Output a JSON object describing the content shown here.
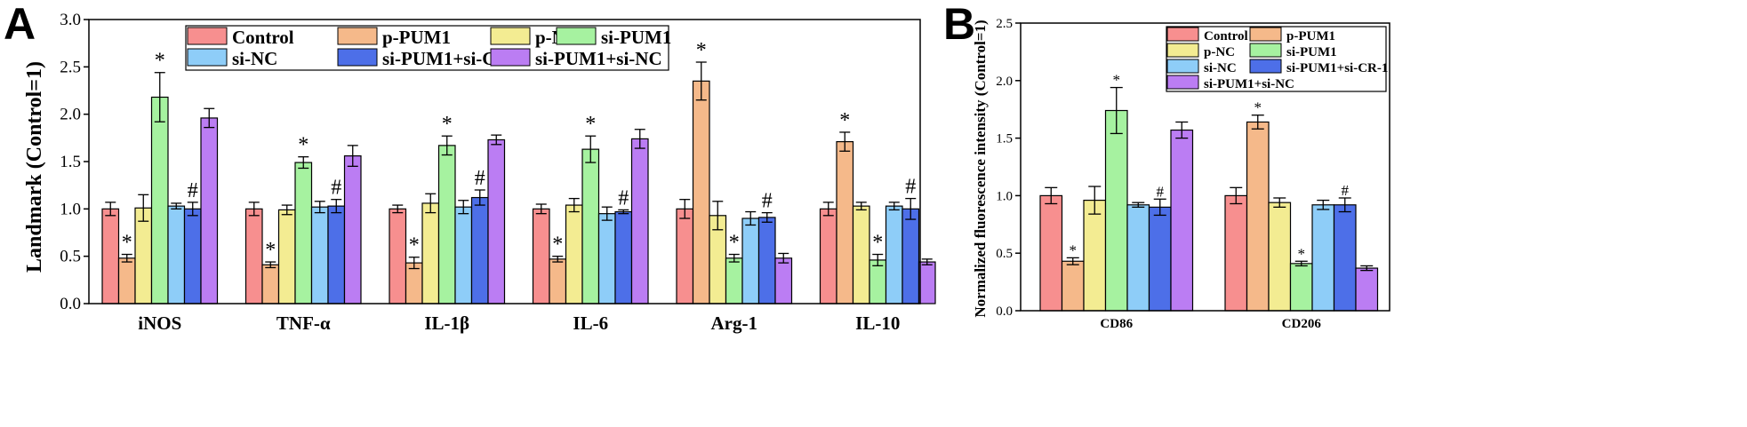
{
  "panels": [
    {
      "letter": "A",
      "chart_data": {
        "type": "bar",
        "ylabel": "Landmark (Control=1)",
        "ylim": [
          0,
          3.0
        ],
        "yticks": [
          "0.0",
          "0.5",
          "1.0",
          "1.5",
          "2.0",
          "2.5",
          "3.0"
        ],
        "categories": [
          "iNOS",
          "TNF-α",
          "IL-1β",
          "IL-6",
          "Arg-1",
          "IL-10"
        ],
        "legend_position": "top-center",
        "series": [
          {
            "name": "Control",
            "color": "#f78f8f",
            "values": [
              1.0,
              1.0,
              1.0,
              1.0,
              1.0,
              1.0
            ],
            "errors": [
              0.07,
              0.07,
              0.04,
              0.05,
              0.1,
              0.07
            ],
            "annotations": [
              "",
              "",
              "",
              "",
              "",
              ""
            ]
          },
          {
            "name": "p-PUM1",
            "color": "#f5b98a",
            "values": [
              0.48,
              0.41,
              0.43,
              0.47,
              2.35,
              1.71
            ],
            "errors": [
              0.04,
              0.03,
              0.06,
              0.03,
              0.2,
              0.1
            ],
            "annotations": [
              "*",
              "*",
              "*",
              "*",
              "*",
              "*"
            ]
          },
          {
            "name": "p-NC",
            "color": "#f3ec92",
            "values": [
              1.01,
              0.99,
              1.06,
              1.04,
              0.93,
              1.03
            ],
            "errors": [
              0.14,
              0.05,
              0.1,
              0.07,
              0.15,
              0.04
            ],
            "annotations": [
              "",
              "",
              "",
              "",
              "",
              ""
            ]
          },
          {
            "name": "si-PUM1",
            "color": "#a6f2a0",
            "values": [
              2.18,
              1.49,
              1.67,
              1.63,
              0.48,
              0.46
            ],
            "errors": [
              0.26,
              0.06,
              0.1,
              0.14,
              0.04,
              0.06
            ],
            "annotations": [
              "*",
              "*",
              "*",
              "*",
              "*",
              "*"
            ]
          },
          {
            "name": "si-NC",
            "color": "#8ecdf8",
            "values": [
              1.03,
              1.02,
              1.02,
              0.95,
              0.9,
              1.03
            ],
            "errors": [
              0.03,
              0.06,
              0.07,
              0.07,
              0.07,
              0.04
            ],
            "annotations": [
              "",
              "",
              "",
              "",
              "",
              ""
            ]
          },
          {
            "name": "si-PUM1+si-CR-1",
            "color": "#4d6fe8",
            "values": [
              1.0,
              1.03,
              1.12,
              0.97,
              0.91,
              1.0
            ],
            "errors": [
              0.07,
              0.07,
              0.08,
              0.02,
              0.05,
              0.11
            ],
            "annotations": [
              "#",
              "#",
              "#",
              "#",
              "#",
              "#"
            ]
          },
          {
            "name": "si-PUM1+si-NC",
            "color": "#bb7df3",
            "values": [
              1.96,
              1.56,
              1.73,
              1.74,
              0.48,
              0.44
            ],
            "errors": [
              0.1,
              0.11,
              0.05,
              0.1,
              0.05,
              0.03
            ],
            "annotations": [
              "",
              "",
              "",
              "",
              "",
              ""
            ]
          }
        ]
      }
    },
    {
      "letter": "B",
      "chart_data": {
        "type": "bar",
        "ylabel": "Normalized fluorescence intensity (Control=1)",
        "ylim": [
          0,
          2.5
        ],
        "yticks": [
          "0.0",
          "0.5",
          "1.0",
          "1.5",
          "2.0",
          "2.5"
        ],
        "categories": [
          "CD86",
          "CD206"
        ],
        "legend_position": "top-right",
        "series": [
          {
            "name": "Control",
            "color": "#f78f8f",
            "values": [
              1.0,
              1.0
            ],
            "errors": [
              0.07,
              0.07
            ],
            "annotations": [
              "",
              ""
            ]
          },
          {
            "name": "p-PUM1",
            "color": "#f5b98a",
            "values": [
              0.43,
              1.64
            ],
            "errors": [
              0.03,
              0.06
            ],
            "annotations": [
              "*",
              "*"
            ]
          },
          {
            "name": "p-NC",
            "color": "#f3ec92",
            "values": [
              0.96,
              0.94
            ],
            "errors": [
              0.12,
              0.04
            ],
            "annotations": [
              "",
              ""
            ]
          },
          {
            "name": "si-PUM1",
            "color": "#a6f2a0",
            "values": [
              1.74,
              0.41
            ],
            "errors": [
              0.2,
              0.02
            ],
            "annotations": [
              "*",
              "*"
            ]
          },
          {
            "name": "si-NC",
            "color": "#8ecdf8",
            "values": [
              0.92,
              0.92
            ],
            "errors": [
              0.02,
              0.04
            ],
            "annotations": [
              "",
              ""
            ]
          },
          {
            "name": "si-PUM1+si-CR-1",
            "color": "#4d6fe8",
            "values": [
              0.9,
              0.92
            ],
            "errors": [
              0.07,
              0.06
            ],
            "annotations": [
              "#",
              "#"
            ]
          },
          {
            "name": "si-PUM1+si-NC",
            "color": "#bb7df3",
            "values": [
              1.57,
              0.37
            ],
            "errors": [
              0.07,
              0.02
            ],
            "annotations": [
              "",
              ""
            ]
          }
        ]
      }
    }
  ]
}
